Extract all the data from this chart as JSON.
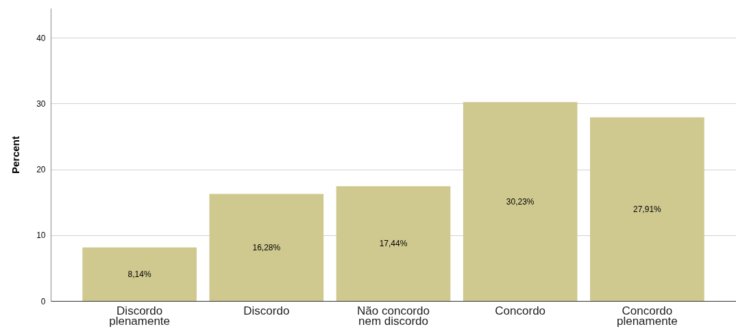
{
  "chart_data": {
    "type": "bar",
    "ylabel": "Percent",
    "categories": [
      "Discordo plenamente",
      "Discordo",
      "Não concordo nem discordo",
      "Concordo",
      "Concordo plenamente"
    ],
    "values": [
      8.14,
      16.28,
      17.44,
      30.23,
      27.91
    ],
    "value_labels": [
      "8,14%",
      "16,28%",
      "17,44%",
      "30,23%",
      "27,91%"
    ],
    "color": "#cfc98f",
    "ylim": [
      0,
      44.5
    ],
    "yticks": [
      0,
      10,
      20,
      30,
      40
    ],
    "grid": "y"
  }
}
